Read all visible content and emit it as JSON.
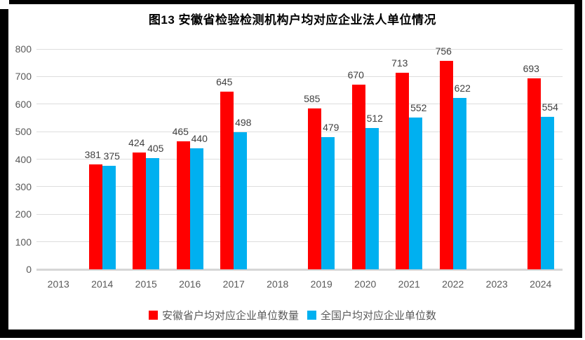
{
  "title": "图13  安徽省检验检测机构户均对应企业法人单位情况",
  "colors": {
    "anhui_red": "#FF0000",
    "national_blue": "#00B0F0",
    "gridline": "#DDDDDD",
    "axis_line": "#D6D6D6",
    "axis_text": "#595959",
    "data_label_text": "#404040",
    "title_text": "#000000",
    "frame": "#000000"
  },
  "chart_data": {
    "type": "bar",
    "title": "图13  安徽省检验检测机构户均对应企业法人单位情况",
    "categories": [
      "2013",
      "2014",
      "2015",
      "2016",
      "2017",
      "2018",
      "2019",
      "2020",
      "2021",
      "2022",
      "2023",
      "2024"
    ],
    "series": [
      {
        "name": "安徽省户均对应企业单位数量",
        "color": "#FF0000",
        "values": [
          null,
          381,
          424,
          465,
          645,
          null,
          585,
          670,
          713,
          756,
          null,
          693
        ]
      },
      {
        "name": "全国户均对应企业单位数",
        "color": "#00B0F0",
        "values": [
          null,
          375,
          405,
          440,
          498,
          null,
          479,
          512,
          552,
          622,
          null,
          554
        ]
      }
    ],
    "xlabel": "",
    "ylabel": "",
    "ylim": [
      0,
      800
    ],
    "yticks": [
      0,
      100,
      200,
      300,
      400,
      500,
      600,
      700,
      800
    ],
    "grid": true,
    "data_labels": true,
    "legend_position": "bottom"
  }
}
